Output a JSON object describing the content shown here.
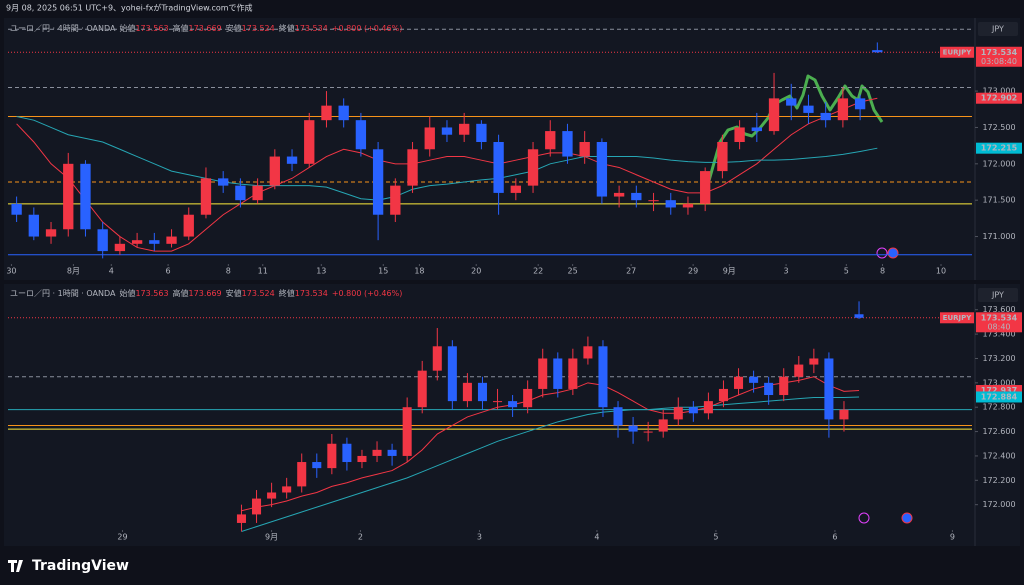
{
  "header": "9月 08, 2025 06:51 UTC+9、yohei-fxがTradingView.comで作成",
  "footer": {
    "brand": "TradingView"
  },
  "chart_data": [
    {
      "type": "candlestick",
      "title": "ユーロ／円 · 4時間 · OANDA",
      "ohlc": [
        {
          "label": "始値",
          "value": 173.563
        },
        {
          "label": "高値",
          "value": 173.669
        },
        {
          "label": "安値",
          "value": 173.524
        },
        {
          "label": "終値",
          "value": 173.534
        }
      ],
      "change": "+0.800 (+0.46%)",
      "currency": "JPY",
      "up_color": "#f23645",
      "down_color": "#2962ff",
      "x": [
        0,
        1,
        2,
        3,
        4,
        5,
        6,
        7,
        8,
        9,
        10,
        11,
        12,
        13,
        14,
        15,
        16,
        17,
        18,
        19,
        20,
        21,
        22,
        23,
        24,
        25,
        26,
        27,
        28,
        29,
        30,
        31,
        32,
        33,
        34,
        35,
        36,
        37,
        38,
        39,
        40,
        41,
        42,
        43,
        44,
        45,
        46,
        47,
        48,
        49,
        50
      ],
      "open": [
        171.45,
        171.3,
        171.0,
        171.1,
        172.0,
        171.1,
        170.8,
        170.9,
        170.95,
        170.9,
        171.0,
        171.3,
        171.8,
        171.7,
        171.5,
        171.7,
        172.1,
        172.0,
        172.6,
        172.8,
        172.6,
        172.2,
        171.3,
        171.7,
        172.2,
        172.5,
        172.4,
        172.55,
        172.3,
        171.6,
        171.7,
        172.2,
        172.45,
        172.1,
        172.3,
        171.55,
        171.6,
        171.5,
        171.5,
        171.4,
        171.45,
        171.9,
        172.3,
        172.5,
        172.45,
        172.9,
        172.8,
        172.7,
        172.6,
        172.9,
        173.563
      ],
      "high": [
        171.55,
        171.4,
        171.2,
        172.15,
        172.05,
        171.2,
        171.0,
        171.05,
        171.05,
        171.1,
        171.4,
        171.95,
        171.9,
        171.8,
        171.8,
        172.2,
        172.2,
        172.7,
        173.0,
        172.9,
        172.7,
        172.3,
        171.8,
        172.3,
        172.65,
        172.6,
        172.7,
        172.6,
        172.4,
        171.8,
        172.3,
        172.6,
        172.55,
        172.45,
        172.35,
        171.7,
        171.7,
        171.6,
        171.6,
        171.55,
        171.95,
        172.4,
        172.6,
        172.7,
        173.25,
        173.1,
        172.95,
        172.85,
        173.05,
        172.95,
        173.669
      ],
      "low": [
        171.2,
        170.95,
        170.9,
        171.0,
        171.0,
        170.7,
        170.75,
        170.85,
        170.8,
        170.85,
        170.95,
        171.25,
        171.6,
        171.4,
        171.45,
        171.65,
        171.9,
        171.95,
        172.5,
        172.5,
        172.1,
        170.95,
        171.2,
        171.6,
        172.1,
        172.3,
        172.3,
        172.2,
        171.3,
        171.5,
        171.6,
        172.1,
        172.0,
        172.0,
        171.45,
        171.4,
        171.4,
        171.35,
        171.3,
        171.3,
        171.35,
        171.8,
        172.2,
        172.3,
        172.4,
        172.6,
        172.55,
        172.5,
        172.5,
        172.6,
        173.524
      ],
      "close": [
        171.3,
        171.0,
        171.1,
        172.0,
        171.1,
        170.8,
        170.9,
        170.95,
        170.9,
        171.0,
        171.3,
        171.8,
        171.7,
        171.5,
        171.7,
        172.1,
        172.0,
        172.6,
        172.8,
        172.6,
        172.2,
        171.3,
        171.7,
        172.2,
        172.5,
        172.4,
        172.55,
        172.3,
        171.6,
        171.7,
        172.2,
        172.45,
        172.1,
        172.3,
        171.55,
        171.6,
        171.5,
        171.5,
        171.4,
        171.45,
        171.9,
        172.3,
        172.5,
        172.45,
        172.9,
        172.8,
        172.7,
        172.6,
        172.9,
        172.75,
        173.534
      ],
      "series": [
        {
          "color": "#f23645",
          "values": [
            172.55,
            172.3,
            172.0,
            171.8,
            171.5,
            171.2,
            171.0,
            170.85,
            170.8,
            170.8,
            170.9,
            171.1,
            171.3,
            171.45,
            171.6,
            171.7,
            171.8,
            171.95,
            172.1,
            172.2,
            172.15,
            172.05,
            172.0,
            172.0,
            172.05,
            172.1,
            172.1,
            172.05,
            172.0,
            172.05,
            172.1,
            172.15,
            172.15,
            172.1,
            172.0,
            171.95,
            171.85,
            171.75,
            171.65,
            171.6,
            171.6,
            171.7,
            171.85,
            172.0,
            172.2,
            172.4,
            172.55,
            172.65,
            172.75,
            172.85,
            172.902
          ]
        },
        {
          "color": "#26a6b4",
          "values": [
            172.65,
            172.6,
            172.5,
            172.4,
            172.35,
            172.3,
            172.2,
            172.1,
            172.0,
            171.9,
            171.85,
            171.8,
            171.75,
            171.72,
            171.7,
            171.7,
            171.7,
            171.7,
            171.68,
            171.6,
            171.52,
            171.5,
            171.55,
            171.65,
            171.7,
            171.72,
            171.75,
            171.78,
            171.8,
            171.85,
            171.9,
            172.0,
            172.05,
            172.1,
            172.1,
            172.1,
            172.1,
            172.08,
            172.05,
            172.03,
            172.02,
            172.02,
            172.03,
            172.05,
            172.05,
            172.06,
            172.08,
            172.1,
            172.13,
            172.17,
            172.215
          ]
        }
      ],
      "hlines": [
        {
          "value": 173.85,
          "color": "#8a8f9c",
          "style": "dashed"
        },
        {
          "value": 173.05,
          "color": "#8a8f9c",
          "style": "dashed"
        },
        {
          "value": 172.65,
          "color": "#f7931a",
          "style": "solid"
        },
        {
          "value": 171.75,
          "color": "#f7931a",
          "style": "dashed"
        },
        {
          "value": 171.45,
          "color": "#ffeb3b",
          "style": "solid"
        },
        {
          "value": 170.75,
          "color": "#2962ff",
          "style": "solid"
        },
        {
          "value": 173.534,
          "color": "#f23645",
          "style": "dotted"
        }
      ],
      "tags": [
        {
          "name": "EURJPY",
          "value": 173.534,
          "time": "03:08:40",
          "color": "#f23645"
        },
        {
          "value": 172.902,
          "color": "#f23645"
        },
        {
          "value": 172.215,
          "color": "#00bcd4"
        }
      ],
      "xlim": [
        -0.5,
        55.5
      ],
      "xticks": [
        {
          "value": -0.3,
          "label": "30"
        },
        {
          "value": 3.3,
          "label": "8月"
        },
        {
          "value": 5.5,
          "label": "4"
        },
        {
          "value": 8.8,
          "label": "6"
        },
        {
          "value": 12.3,
          "label": "8"
        },
        {
          "value": 14.3,
          "label": "11"
        },
        {
          "value": 17.7,
          "label": "13"
        },
        {
          "value": 21.3,
          "label": "15"
        },
        {
          "value": 23.4,
          "label": "18"
        },
        {
          "value": 26.7,
          "label": "20"
        },
        {
          "value": 30.3,
          "label": "22"
        },
        {
          "value": 32.3,
          "label": "25"
        },
        {
          "value": 35.7,
          "label": "27"
        },
        {
          "value": 39.3,
          "label": "29"
        },
        {
          "value": 41.4,
          "label": "9月"
        },
        {
          "value": 44.7,
          "label": "3"
        },
        {
          "value": 48.2,
          "label": "5"
        },
        {
          "value": 50.3,
          "label": "8"
        },
        {
          "value": 53.7,
          "label": "10"
        }
      ],
      "ylim": [
        170.65,
        173.95
      ],
      "yticks": [
        {
          "value": 171,
          "label": "171.000"
        },
        {
          "value": 171.5,
          "label": "171.500"
        },
        {
          "value": 172,
          "label": "172.000"
        },
        {
          "value": 172.5,
          "label": "172.500"
        },
        {
          "value": 173,
          "label": "173.000"
        }
      ]
    },
    {
      "type": "candlestick",
      "title": "ユーロ／円 · 1時間 · OANDA",
      "ohlc": [
        {
          "label": "始値",
          "value": 173.563
        },
        {
          "label": "高値",
          "value": 173.669
        },
        {
          "label": "安値",
          "value": 173.524
        },
        {
          "label": "終値",
          "value": 173.534
        }
      ],
      "change": "+0.800 (+0.46%)",
      "currency": "JPY",
      "up_color": "#f23645",
      "down_color": "#2962ff",
      "x": [
        15,
        16,
        17,
        18,
        19,
        20,
        21,
        22,
        23,
        24,
        25,
        26,
        27,
        28,
        29,
        30,
        31,
        32,
        33,
        34,
        35,
        36,
        37,
        38,
        39,
        40,
        41,
        42,
        43,
        44,
        45,
        46,
        47,
        48,
        49,
        50,
        51,
        52,
        53,
        54,
        55,
        56
      ],
      "open": [
        171.85,
        171.92,
        172.05,
        172.1,
        172.15,
        172.35,
        172.3,
        172.5,
        172.35,
        172.4,
        172.45,
        172.4,
        172.8,
        173.1,
        173.3,
        172.85,
        173.0,
        172.85,
        172.85,
        172.8,
        172.95,
        173.2,
        172.95,
        173.2,
        173.3,
        172.8,
        172.65,
        172.6,
        172.6,
        172.7,
        172.8,
        172.75,
        172.85,
        172.95,
        173.05,
        173.0,
        172.9,
        173.05,
        173.15,
        173.2,
        172.7,
        173.563
      ],
      "high": [
        172.0,
        172.12,
        172.18,
        172.22,
        172.42,
        172.42,
        172.58,
        172.55,
        172.45,
        172.52,
        172.5,
        172.88,
        173.18,
        173.45,
        173.35,
        173.08,
        173.05,
        172.95,
        172.9,
        173.02,
        173.28,
        173.25,
        173.28,
        173.38,
        173.35,
        172.85,
        172.72,
        172.68,
        172.78,
        172.88,
        172.85,
        172.92,
        173.02,
        173.12,
        173.1,
        173.05,
        173.12,
        173.22,
        173.28,
        173.25,
        172.85,
        173.669
      ],
      "low": [
        171.78,
        171.85,
        171.98,
        172.05,
        172.1,
        172.22,
        172.25,
        172.28,
        172.3,
        172.35,
        172.32,
        172.35,
        172.75,
        173.02,
        172.78,
        172.8,
        172.78,
        172.78,
        172.72,
        172.75,
        172.88,
        172.88,
        172.9,
        173.15,
        172.72,
        172.55,
        172.5,
        172.52,
        172.55,
        172.65,
        172.68,
        172.7,
        172.8,
        172.9,
        172.92,
        172.82,
        172.85,
        173.0,
        173.08,
        172.55,
        172.6,
        173.524
      ],
      "close": [
        171.92,
        172.05,
        172.1,
        172.15,
        172.35,
        172.3,
        172.5,
        172.35,
        172.4,
        172.45,
        172.4,
        172.8,
        173.1,
        173.3,
        172.85,
        173.0,
        172.85,
        172.85,
        172.8,
        172.95,
        173.2,
        172.95,
        173.2,
        173.3,
        172.8,
        172.65,
        172.6,
        172.6,
        172.7,
        172.8,
        172.75,
        172.85,
        172.95,
        173.05,
        173.0,
        172.9,
        173.05,
        173.15,
        173.2,
        172.7,
        172.78,
        173.534
      ],
      "series": [
        {
          "color": "#f23645",
          "values": [
            171.95,
            171.98,
            172.0,
            172.03,
            172.07,
            172.1,
            172.15,
            172.18,
            172.22,
            172.25,
            172.28,
            172.35,
            172.45,
            172.58,
            172.65,
            172.72,
            172.76,
            172.8,
            172.82,
            172.85,
            172.9,
            172.92,
            172.95,
            173.0,
            172.98,
            172.92,
            172.85,
            172.78,
            172.75,
            172.75,
            172.77,
            172.8,
            172.85,
            172.9,
            172.95,
            172.98,
            173.0,
            173.02,
            173.05,
            172.98,
            172.93,
            172.937
          ]
        },
        {
          "color": "#26a6b4",
          "values": [
            171.78,
            171.82,
            171.86,
            171.9,
            171.94,
            171.98,
            172.02,
            172.06,
            172.1,
            172.14,
            172.18,
            172.22,
            172.27,
            172.32,
            172.37,
            172.42,
            172.47,
            172.52,
            172.56,
            172.6,
            172.64,
            172.68,
            172.71,
            172.74,
            172.76,
            172.77,
            172.78,
            172.78,
            172.79,
            172.8,
            172.8,
            172.81,
            172.82,
            172.83,
            172.84,
            172.85,
            172.86,
            172.87,
            172.88,
            172.88,
            172.88,
            172.884
          ]
        }
      ],
      "hlines": [
        {
          "value": 173.05,
          "color": "#8a8f9c",
          "style": "dashed"
        },
        {
          "value": 172.78,
          "color": "#26a6b4",
          "style": "solid"
        },
        {
          "value": 172.65,
          "color": "#f7931a",
          "style": "solid"
        },
        {
          "value": 172.62,
          "color": "#ffeb3b",
          "style": "solid"
        },
        {
          "value": 173.534,
          "color": "#f23645",
          "style": "dotted"
        }
      ],
      "tags": [
        {
          "name": "EURJPY",
          "value": 173.534,
          "time": "08:40",
          "color": "#f23645"
        },
        {
          "value": 172.937,
          "color": "#f23645"
        },
        {
          "value": 172.884,
          "color": "#00bcd4"
        }
      ],
      "xlim": [
        -0.5,
        63.5
      ],
      "xticks": [
        {
          "value": 7.1,
          "label": "29"
        },
        {
          "value": 17,
          "label": "9月"
        },
        {
          "value": 22.9,
          "label": "2"
        },
        {
          "value": 30.8,
          "label": "3"
        },
        {
          "value": 38.6,
          "label": "4"
        },
        {
          "value": 46.5,
          "label": "5"
        },
        {
          "value": 54.4,
          "label": "6"
        },
        {
          "value": 62.2,
          "label": "9"
        }
      ],
      "ylim": [
        171.71,
        173.68
      ],
      "yticks": [
        {
          "value": 172,
          "label": "172.000"
        },
        {
          "value": 172.2,
          "label": "172.200"
        },
        {
          "value": 172.4,
          "label": "172.400"
        },
        {
          "value": 172.6,
          "label": "172.600"
        },
        {
          "value": 172.8,
          "label": "172.800"
        },
        {
          "value": 173,
          "label": "173.000"
        },
        {
          "value": 173.2,
          "label": "173.200"
        },
        {
          "value": 173.4,
          "label": "173.400"
        },
        {
          "value": 173.6,
          "label": "173.600"
        }
      ]
    }
  ]
}
